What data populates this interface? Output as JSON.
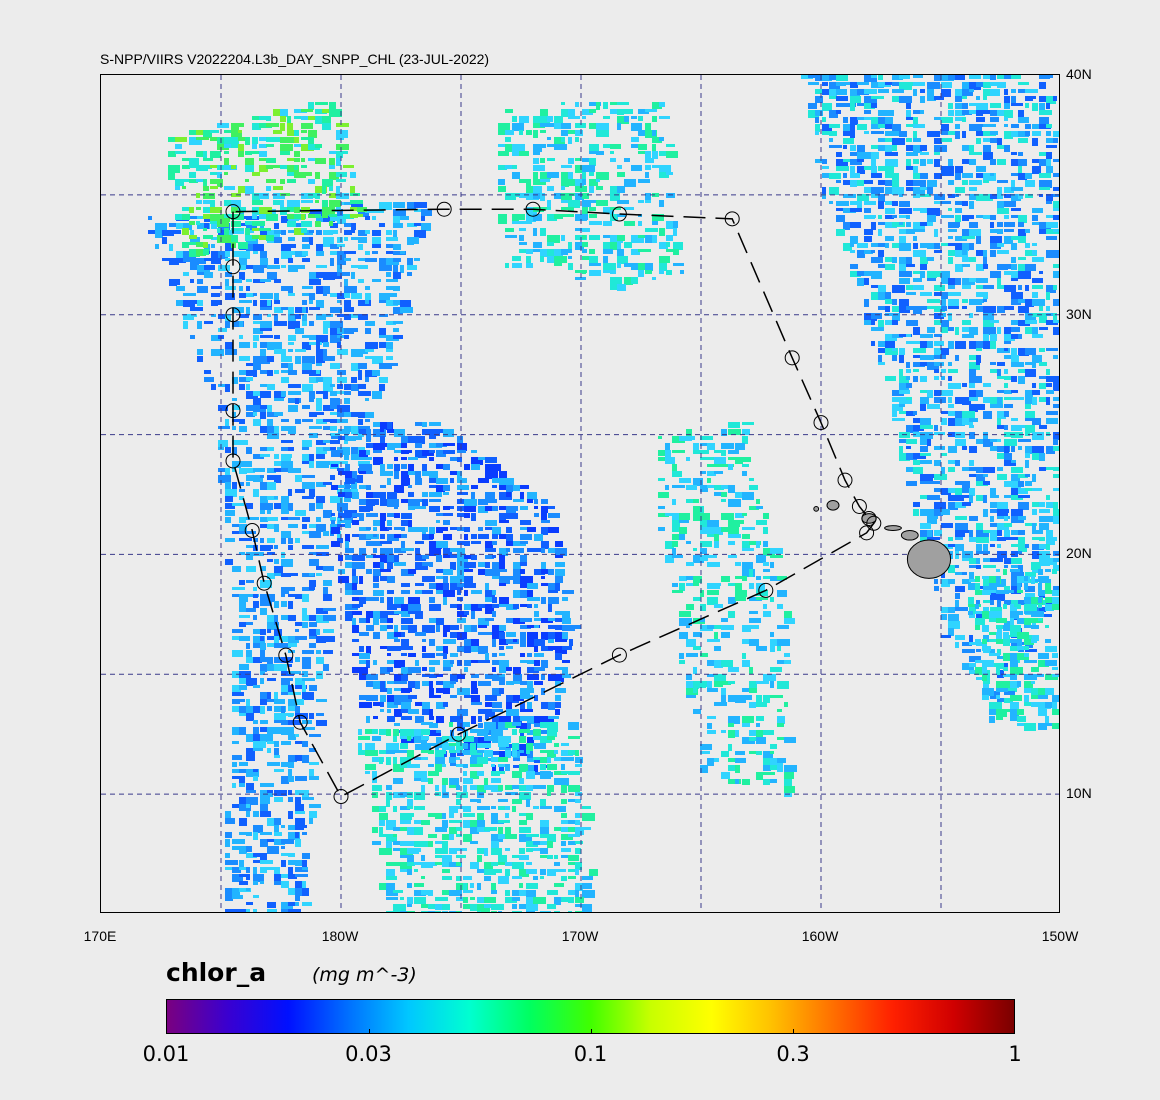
{
  "title": "S-NPP/VIIRS V2022204.L3b_DAY_SNPP_CHL (23-JUL-2022)",
  "latitude_labels": [
    {
      "text": "40N",
      "lat": 40
    },
    {
      "text": "30N",
      "lat": 30
    },
    {
      "text": "20N",
      "lat": 20
    },
    {
      "text": "10N",
      "lat": 10
    }
  ],
  "longitude_labels": [
    {
      "text": "170E",
      "lon": 170
    },
    {
      "text": "180W",
      "lon": 180
    },
    {
      "text": "170W",
      "lon": 190
    },
    {
      "text": "160W",
      "lon": 200
    },
    {
      "text": "150W",
      "lon": 210
    }
  ],
  "extent": {
    "lon_min": 170,
    "lon_max": 210,
    "lat_min": 5,
    "lat_max": 40
  },
  "colorbar": {
    "variable": "chlor_a",
    "units": "(mg m^-3)",
    "scale": "log",
    "range": [
      0.01,
      1
    ],
    "ticks": [
      "0.01",
      "0.03",
      "0.1",
      "0.3",
      "1"
    ],
    "colors": [
      "#7a0080",
      "#3a00d0",
      "#0010ff",
      "#0070ff",
      "#00c8ff",
      "#00ffd0",
      "#00ff60",
      "#40ff00",
      "#c8ff00",
      "#ffff00",
      "#ffc000",
      "#ff7000",
      "#ff2000",
      "#d00000",
      "#7a0000"
    ]
  },
  "colors": {
    "background": "#ececec",
    "gridline": "#3a3a8a",
    "track": "#000000",
    "land": "#a0a0a0"
  },
  "track_points": [
    [
      175.5,
      34.3
    ],
    [
      175.5,
      32.0
    ],
    [
      175.5,
      30.0
    ],
    [
      175.5,
      26.0
    ],
    [
      175.5,
      23.9
    ],
    [
      176.3,
      21.0
    ],
    [
      176.8,
      18.8
    ],
    [
      177.7,
      15.8
    ],
    [
      178.3,
      13.0
    ],
    [
      180.0,
      9.9
    ],
    [
      184.9,
      12.5
    ],
    [
      191.6,
      15.8
    ],
    [
      197.7,
      18.5
    ],
    [
      201.9,
      20.9
    ],
    [
      202.2,
      21.3
    ],
    [
      202.0,
      21.5
    ],
    [
      201.6,
      22.0
    ],
    [
      201.0,
      23.1
    ],
    [
      200.0,
      25.5
    ],
    [
      198.8,
      28.2
    ],
    [
      196.3,
      34.0
    ],
    [
      191.6,
      34.2
    ],
    [
      188.0,
      34.4
    ],
    [
      184.3,
      34.4
    ]
  ],
  "islands": [
    {
      "name": "Hawaii",
      "center": [
        204.5,
        19.8
      ],
      "size": [
        0.9,
        0.8
      ]
    },
    {
      "name": "Maui",
      "center": [
        203.7,
        20.8
      ],
      "size": [
        0.35,
        0.2
      ]
    },
    {
      "name": "Molokai",
      "center": [
        203.0,
        21.1
      ],
      "size": [
        0.35,
        0.1
      ]
    },
    {
      "name": "Oahu",
      "center": [
        202.0,
        21.5
      ],
      "size": [
        0.3,
        0.2
      ]
    },
    {
      "name": "Kauai",
      "center": [
        200.5,
        22.05
      ],
      "size": [
        0.25,
        0.2
      ]
    },
    {
      "name": "Niihau",
      "center": [
        199.8,
        21.9
      ],
      "size": [
        0.1,
        0.1
      ]
    }
  ]
}
